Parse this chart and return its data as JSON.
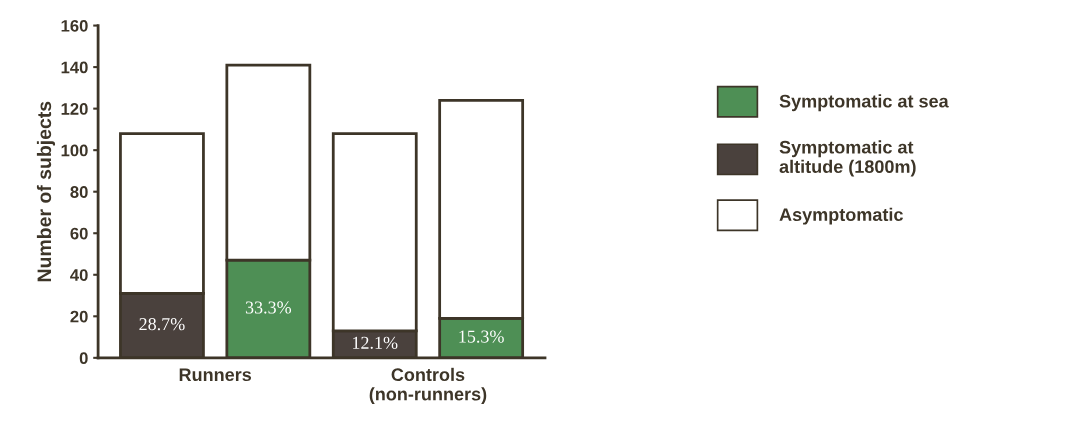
{
  "chart_data": {
    "type": "bar",
    "stacked": true,
    "ylabel": "Number of subjects",
    "categories": [
      null,
      null,
      null,
      null
    ],
    "series": [
      {
        "name": "Symptomatic at sea",
        "color": "#4e8f55",
        "values": [
          null,
          47,
          null,
          19
        ]
      },
      {
        "name": "Symptomatic at\naltitude (1800m)",
        "color": "#4a413d",
        "values": [
          31,
          null,
          13,
          null
        ]
      },
      {
        "name": "Asymptomatic",
        "color": "#ffffff",
        "values": [
          77,
          94,
          95,
          105
        ]
      }
    ],
    "annotations": [
      "Runners",
      "Controls\n(non-runners)",
      "28.7%",
      "33.3%",
      "12.1%",
      "15.3%"
    ],
    "ylim": [
      0,
      160
    ],
    "yticks": [
      0,
      20,
      40,
      60,
      80,
      100,
      120,
      140,
      160
    ],
    "grid": false,
    "legend": "right"
  }
}
